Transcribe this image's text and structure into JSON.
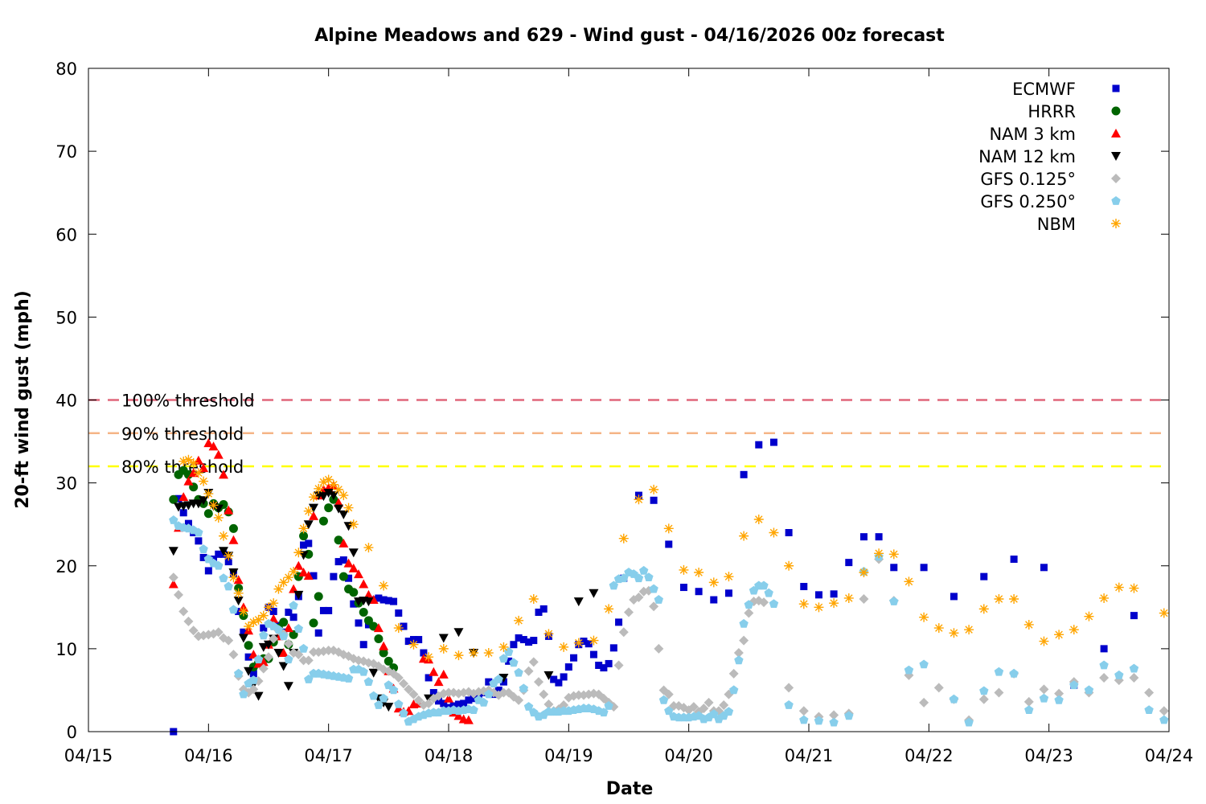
{
  "chart_data": {
    "type": "scatter",
    "title": "Alpine Meadows and 629 - Wind gust - 04/16/2026 00z forecast",
    "xlabel": "Date",
    "ylabel": "20-ft wind gust (mph)",
    "xlim": [
      "2026-04-15T00:00",
      "2026-04-24T00:00"
    ],
    "ylim": [
      0,
      80
    ],
    "x_ticks": [
      {
        "at": "2026-04-15T00:00",
        "label": "04/15"
      },
      {
        "at": "2026-04-16T00:00",
        "label": "04/16"
      },
      {
        "at": "2026-04-17T00:00",
        "label": "04/17"
      },
      {
        "at": "2026-04-18T00:00",
        "label": "04/18"
      },
      {
        "at": "2026-04-19T00:00",
        "label": "04/19"
      },
      {
        "at": "2026-04-20T00:00",
        "label": "04/20"
      },
      {
        "at": "2026-04-21T00:00",
        "label": "04/21"
      },
      {
        "at": "2026-04-22T00:00",
        "label": "04/22"
      },
      {
        "at": "2026-04-23T00:00",
        "label": "04/23"
      },
      {
        "at": "2026-04-24T00:00",
        "label": "04/24"
      }
    ],
    "y_ticks": [
      "0",
      "10",
      "20",
      "30",
      "40",
      "50",
      "60",
      "70",
      "80"
    ],
    "grid": false,
    "legend_position": "top-right",
    "thresholds": [
      {
        "label": "100% threshold",
        "value": 40,
        "color": "#e0667a"
      },
      {
        "label": "90% threshold",
        "value": 36,
        "color": "#f5b486"
      },
      {
        "label": "80% threshold",
        "value": 32,
        "color": "#ffff00"
      }
    ],
    "series": [
      {
        "name": "ECMWF",
        "marker": "square",
        "color": "#0000cc",
        "segments": [
          {
            "start": "2026-04-15T17:00",
            "step_hours": 1,
            "values": [
              0,
              28.1,
              26.4,
              25.1,
              24,
              23,
              21,
              19.4,
              20.8,
              21.4,
              21.4,
              20.5,
              19.1,
              14.5,
              12,
              9,
              7,
              8.5,
              12.5,
              15,
              14.5,
              12.8,
              12,
              14.4,
              13.8,
              16.3,
              22.5,
              22.7,
              18.8,
              11.9,
              14.6,
              14.6,
              18.7,
              20.5,
              20.7,
              18.5,
              15.4,
              13.1,
              10.5,
              12.9,
              15.9,
              16.1,
              15.9,
              15.8,
              15.7,
              14.3,
              12.7,
              10.9,
              11.1,
              11.1,
              9.5,
              6.5,
              4.7,
              3.7,
              3.4,
              2.9,
              3.1,
              3.3,
              3.4,
              3.8,
              4.0,
              4.3,
              4.7,
              6,
              4.5,
              5,
              6,
              8.5,
              10.5,
              11.3,
              11.1,
              10.8,
              11,
              14.4,
              14.8,
              11.5,
              6.3,
              5.9,
              6.6,
              7.8,
              8.9,
              10.5,
              10.9,
              10.6,
              9.3,
              8,
              7.7,
              8.2,
              10.1,
              13.2,
              18.5
            ]
          },
          {
            "start": "2026-04-19T14:00",
            "step_hours": 3,
            "values": [
              28.5,
              27.9,
              22.6,
              17.4,
              16.9,
              15.9,
              16.7,
              31,
              34.6,
              34.9,
              24,
              17.5,
              16.5,
              16.6,
              20.4,
              23.5,
              23.5,
              19.8
            ]
          },
          {
            "start": "2026-04-21T23:00",
            "step_hours": 6,
            "values": [
              19.8,
              16.3,
              18.7,
              20.8,
              19.8,
              5.6,
              10,
              14
            ]
          }
        ]
      },
      {
        "name": "HRRR",
        "marker": "circle",
        "color": "#006400",
        "segments": [
          {
            "start": "2026-04-15T17:00",
            "step_hours": 1,
            "values": [
              28,
              31,
              31.5,
              31,
              29.5,
              28,
              27.5,
              26.3,
              27.5,
              27,
              27.4,
              26.5,
              24.5,
              17.3,
              14,
              10.4,
              7.8,
              8.3,
              8.8,
              8.8,
              10.8,
              12.5,
              13.2,
              10.5,
              11.7,
              18.7,
              23.6,
              21.4,
              13.1,
              16.3,
              25.4,
              27,
              28,
              23.1,
              18.7,
              17.2,
              16.8,
              15.5,
              14.4,
              13.4,
              12.7,
              11.2,
              9.5,
              8.5,
              7.7
            ]
          }
        ]
      },
      {
        "name": "NAM 3 km",
        "marker": "triangle-up",
        "color": "#ff0000",
        "segments": [
          {
            "start": "2026-04-15T17:00",
            "step_hours": 1,
            "values": [
              17.8,
              24.6,
              28.3,
              30.2,
              31.2,
              32.7,
              31.8,
              34.8,
              34.4,
              33.4,
              31,
              26.7,
              23.1,
              18.3,
              15,
              12.2,
              9.3,
              8.2,
              8.4,
              10.5,
              13.6,
              11.5,
              9.5,
              12.5,
              17.2,
              20,
              19.2,
              18.8,
              26,
              28.5,
              29.2,
              29.4,
              29.7,
              27.6,
              22.7,
              20.3,
              19.7,
              19,
              17.8,
              16.5,
              15.9,
              12.5,
              10.3,
              7.3,
              5.2,
              2.8,
              2.4,
              2.5,
              3.3,
              3.4,
              8.8,
              8.7,
              7.2,
              6,
              6.9,
              4,
              2.3,
              1.9,
              1.5,
              1.4
            ]
          }
        ]
      },
      {
        "name": "NAM 12 km",
        "marker": "triangle-down",
        "color": "#000000",
        "segments": [
          {
            "start": "2026-04-15T17:00",
            "step_hours": 1,
            "values": [
              21.8,
              27.1,
              27.2,
              27.3,
              27.5,
              27.5,
              27.9,
              28.8,
              27.2,
              26.9,
              21.8,
              21.2,
              19.2,
              15.8,
              11.3,
              7.3,
              5.7,
              4.3,
              10.2,
              10.5,
              11.2,
              9.5,
              7.9,
              5.5,
              9.5,
              16.5,
              21.3,
              25,
              27,
              28.5,
              28.4,
              28.8,
              28.5,
              26.9,
              26.2,
              24.8,
              21.6,
              15.7,
              15.8,
              15.7,
              7.1,
              4,
              3.5,
              3
            ]
          },
          {
            "start": "2026-04-17T20:00",
            "step_hours": 3,
            "values": [
              4,
              11.3,
              12,
              9.5,
              null,
              6.5,
              null,
              null,
              6.8,
              null,
              15.7,
              16.7
            ]
          }
        ]
      },
      {
        "name": "GFS 0.125°",
        "marker": "diamond",
        "color": "#bbbbbb",
        "segments": [
          {
            "start": "2026-04-15T17:00",
            "step_hours": 1,
            "values": [
              18.6,
              16.5,
              14.5,
              13.3,
              12.2,
              11.5,
              11.6,
              11.7,
              11.8,
              12,
              11.3,
              11,
              9.3,
              6.7,
              5.1,
              4.7,
              5.1,
              6.1,
              7.6,
              9,
              11.2,
              12.2,
              11.8,
              10.6,
              9.5,
              9.3,
              8.6,
              8.6,
              9.6,
              9.6,
              9.7,
              9.8,
              9.8,
              9.6,
              9.3,
              9.1,
              8.8,
              8.6,
              8.5,
              8.3,
              8.2,
              7.9,
              7.5,
              7.3,
              7,
              6.5,
              5.8,
              5.1,
              4.5,
              3.8,
              3.2,
              3.4,
              4,
              4.3,
              4.6,
              4.7,
              4.7,
              4.6,
              4.7,
              4.8,
              4.6,
              4.8,
              4.9,
              5,
              4.7,
              4.4,
              4.7,
              4.7,
              4.2,
              3.8,
              5,
              7.3,
              8.4,
              6,
              4.5,
              3.3,
              2.5,
              2.7,
              3.2,
              4.1,
              4.3,
              4.4,
              4.4,
              4.5,
              4.6,
              4.5,
              4,
              3.5,
              3,
              8,
              12,
              14.4,
              15.9,
              16.2,
              16.9,
              17,
              15.1,
              10,
              5,
              4.5,
              3.1,
              3.1,
              2.9,
              2.6,
              3,
              2.4,
              2.8,
              3.5,
              2.5,
              2.5,
              3.2,
              4.5,
              7,
              9.5,
              11,
              14.3,
              15.7,
              15.8,
              15.6
            ]
          },
          {
            "start": "2026-04-20T20:00",
            "step_hours": 3,
            "values": [
              5.3,
              2.5,
              1.8,
              2,
              2.2,
              16,
              20.8,
              15.8,
              6.8,
              3.5,
              5.3,
              3.9,
              1.4,
              3.9,
              4.7,
              7,
              3.6,
              5.1,
              4.6,
              6,
              4.7,
              6.5,
              6.2,
              6.5,
              4.7,
              2.5
            ]
          }
        ]
      },
      {
        "name": "GFS 0.250°",
        "marker": "pentagon",
        "color": "#87ceeb",
        "segments": [
          {
            "start": "2026-04-15T17:00",
            "step_hours": 1,
            "values": [
              25.5,
              24.8,
              24.6,
              24.5,
              24.3,
              24,
              22,
              20.8,
              20.3,
              20,
              18.5,
              17.5,
              14.7,
              7,
              4.5,
              5.8,
              6.2,
              8.7,
              11.6,
              13,
              12.7,
              12.3,
              11.5,
              8.7,
              15.2,
              12.4,
              10,
              6.3,
              7,
              7,
              6.9,
              6.8,
              6.7,
              6.6,
              6.5,
              6.4,
              7.5,
              7.5,
              7.2,
              6,
              4.3,
              3.2,
              4,
              5.6,
              5,
              3.3,
              2.2,
              1.2,
              1.5,
              1.8,
              2,
              2.2,
              2.3,
              2.3,
              2.5,
              2.5,
              2.6,
              2.5,
              2.6,
              2.7,
              2.6,
              3.8,
              3.5,
              4.5,
              5.8,
              6.3,
              8.8,
              9.6,
              8.3,
              7.1,
              5.2,
              3,
              2.3,
              1.8,
              2,
              2.4,
              2.4,
              2.4,
              2.5,
              2.5,
              2.6,
              2.7,
              2.8,
              2.8,
              2.7,
              2.5,
              2.3,
              3.1,
              17.6,
              18.4,
              18.5,
              19.2,
              19,
              18.5,
              19.4,
              18.6,
              17.2,
              15.9,
              3.8,
              2.5,
              1.8,
              1.7,
              1.7,
              1.7,
              1.8,
              1.9,
              1.5,
              1.7,
              2.1,
              1.5,
              1.9,
              2.4,
              5,
              8.6,
              13,
              15.3,
              17,
              17.6,
              17.6,
              16.7,
              15.4
            ]
          },
          {
            "start": "2026-04-20T20:00",
            "step_hours": 3,
            "values": [
              3.2,
              1.4,
              1.3,
              1.1,
              1.9,
              19.3,
              21.1,
              15.7,
              7.4,
              8.1,
              null,
              3.9,
              1.1,
              4.9,
              7.2,
              7,
              2.6,
              4,
              3.8,
              5.6,
              5,
              8,
              6.8,
              7.6,
              2.6,
              1.4
            ]
          }
        ]
      },
      {
        "name": "NBM",
        "marker": "asterisk",
        "color": "#ffa500",
        "segments": [
          {
            "start": "2026-04-15T19:00",
            "step_hours": 1,
            "values": [
              32.6,
              32.8,
              32.4,
              31.2,
              30.2,
              28.7,
              27.3,
              25.8,
              23.6,
              21.2,
              18.6,
              16.7,
              14.5,
              12.7,
              13.2,
              13.5,
              14,
              15,
              15.5,
              17.2,
              18,
              18.6,
              19.3,
              21.6,
              24.5,
              26.6,
              28.3,
              29.3,
              30.1,
              30.4,
              29.8,
              29.2,
              28.5,
              27,
              25
            ]
          },
          {
            "start": "2026-04-17T08:00",
            "step_hours": 3,
            "values": [
              22.2,
              17.6,
              12.5,
              10.5,
              9,
              10,
              9.2,
              9.5,
              9.5,
              10.2,
              13.4,
              16,
              11.8,
              10.2,
              10.7,
              11,
              14.8,
              23.3,
              28,
              29.2,
              24.5,
              19.5,
              19.2,
              18,
              18.7,
              23.6,
              25.6,
              24,
              20,
              15.4,
              15,
              15.5,
              16.1,
              19.2,
              21.5,
              21.4,
              18.1,
              13.8,
              12.5,
              11.9,
              12.3,
              14.8,
              16,
              16,
              12.9,
              10.9,
              11.7,
              12.3,
              13.9,
              16.1,
              17.4,
              17.3,
              null,
              14.3
            ]
          }
        ]
      }
    ]
  }
}
